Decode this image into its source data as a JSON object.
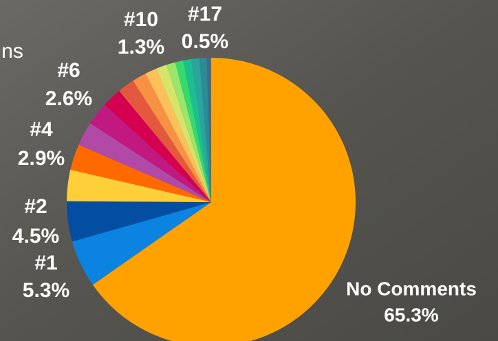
{
  "chart_data": {
    "type": "pie",
    "title": "ns",
    "categories": [
      "No Comments",
      "#1",
      "#2",
      null,
      "#4",
      null,
      "#6",
      null,
      null,
      null,
      "#10",
      null,
      null,
      null,
      null,
      null,
      null,
      "#17"
    ],
    "values": [
      65.3,
      5.3,
      4.5,
      3.5,
      2.9,
      2.7,
      2.6,
      2.2,
      1.9,
      1.6,
      1.3,
      1.2,
      1.0,
      0.9,
      0.9,
      0.9,
      0.8,
      0.5
    ],
    "value_labels": [
      "65.3%",
      "5.3%",
      "4.5%",
      null,
      "2.9%",
      null,
      "2.6%",
      null,
      null,
      null,
      "1.3%",
      null,
      null,
      null,
      null,
      null,
      null,
      "0.5%"
    ],
    "colors": [
      "#ffa200",
      "#0a84e0",
      "#034ea2",
      "#ffcf3a",
      "#ff6a00",
      "#b04aa6",
      "#c1197f",
      "#d5004f",
      "#e4593d",
      "#f79244",
      "#ffc05a",
      "#d8e36a",
      "#9ae56a",
      "#36d96e",
      "#1bbf8f",
      "#2aa59e",
      "#2b8c95",
      "#3a6e93"
    ]
  }
}
